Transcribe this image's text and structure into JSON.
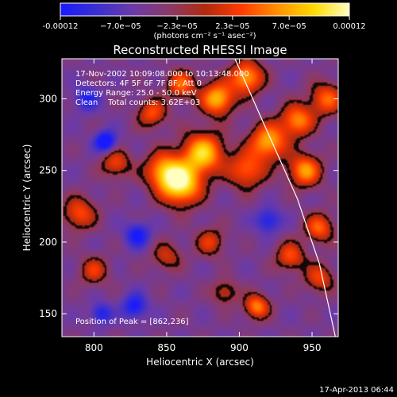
{
  "chart_data": {
    "type": "heatmap",
    "title": "Reconstructed RHESSI Image",
    "xlabel": "Heliocentric X (arcsec)",
    "ylabel": "Heliocentric Y (arcsec)",
    "xlim": [
      778,
      968
    ],
    "ylim": [
      134,
      328
    ],
    "xticks": [
      800,
      850,
      900,
      950
    ],
    "yticks": [
      150,
      200,
      250,
      300
    ],
    "colorbar": {
      "tick_labels": [
        "-0.00012",
        "−7.0e−05",
        "−2.3e−05",
        "2.3e−05",
        "7.0e−05",
        "0.00012"
      ],
      "tick_values": [
        -0.00012,
        -7e-05,
        -2.3e-05,
        2.3e-05,
        7e-05,
        0.00012
      ],
      "range": [
        -0.00012,
        0.00012
      ],
      "units_label": "(photons cm⁻² s⁻¹ asec⁻²)",
      "colormap": [
        "#1a1aff",
        "#3b2fd0",
        "#6b3aa8",
        "#8a3a6a",
        "#b02a10",
        "#ff3a00",
        "#ff9000",
        "#ffd800",
        "#ffffc0"
      ]
    },
    "annotations": {
      "line1": "17-Nov-2002 10:09:08.000 to 10:13:48.000",
      "line2": "Detectors: 4F 5F 6F 7F 8F, Att 0",
      "line3": "Energy Range: 25.0 - 50.0 keV",
      "line4": "Clean    Total counts: 3.62E+03",
      "peak": "Position of Peak = [862,236]"
    },
    "peak": [
      862,
      236
    ],
    "sources": [
      {
        "x": 860,
        "y": 240,
        "amp": 1.0,
        "sigma": 10
      },
      {
        "x": 875,
        "y": 262,
        "amp": 0.9,
        "sigma": 10
      },
      {
        "x": 848,
        "y": 250,
        "amp": 0.7,
        "sigma": 9
      },
      {
        "x": 885,
        "y": 300,
        "amp": 0.85,
        "sigma": 8
      },
      {
        "x": 905,
        "y": 315,
        "amp": 0.8,
        "sigma": 8
      },
      {
        "x": 920,
        "y": 270,
        "amp": 0.8,
        "sigma": 9
      },
      {
        "x": 905,
        "y": 250,
        "amp": 0.6,
        "sigma": 9
      },
      {
        "x": 940,
        "y": 285,
        "amp": 0.7,
        "sigma": 8
      },
      {
        "x": 945,
        "y": 250,
        "amp": 0.75,
        "sigma": 8
      },
      {
        "x": 960,
        "y": 300,
        "amp": 0.6,
        "sigma": 8
      },
      {
        "x": 955,
        "y": 210,
        "amp": 0.6,
        "sigma": 7
      },
      {
        "x": 935,
        "y": 190,
        "amp": 0.55,
        "sigma": 7
      },
      {
        "x": 955,
        "y": 175,
        "amp": 0.5,
        "sigma": 7
      },
      {
        "x": 912,
        "y": 155,
        "amp": 0.7,
        "sigma": 6
      },
      {
        "x": 840,
        "y": 290,
        "amp": 0.55,
        "sigma": 7
      },
      {
        "x": 860,
        "y": 310,
        "amp": 0.6,
        "sigma": 7
      },
      {
        "x": 815,
        "y": 255,
        "amp": 0.5,
        "sigma": 7
      },
      {
        "x": 790,
        "y": 220,
        "amp": 0.55,
        "sigma": 8
      },
      {
        "x": 800,
        "y": 180,
        "amp": 0.45,
        "sigma": 7
      },
      {
        "x": 880,
        "y": 200,
        "amp": 0.45,
        "sigma": 7
      },
      {
        "x": 850,
        "y": 190,
        "amp": 0.4,
        "sigma": 7
      },
      {
        "x": 890,
        "y": 165,
        "amp": 0.4,
        "sigma": 6
      },
      {
        "x": 808,
        "y": 270,
        "amp": -0.7,
        "sigma": 5
      },
      {
        "x": 830,
        "y": 205,
        "amp": -0.5,
        "sigma": 6
      },
      {
        "x": 828,
        "y": 155,
        "amp": -0.5,
        "sigma": 6
      },
      {
        "x": 805,
        "y": 150,
        "amp": -0.45,
        "sigma": 5
      },
      {
        "x": 920,
        "y": 215,
        "amp": -0.45,
        "sigma": 6
      },
      {
        "x": 795,
        "y": 300,
        "amp": -0.4,
        "sigma": 6
      }
    ],
    "limb_curve": [
      [
        897,
        328
      ],
      [
        918,
        280
      ],
      [
        940,
        230
      ],
      [
        955,
        185
      ],
      [
        966,
        134
      ]
    ]
  },
  "footer": {
    "timestamp": "17-Apr-2013 06:44"
  }
}
